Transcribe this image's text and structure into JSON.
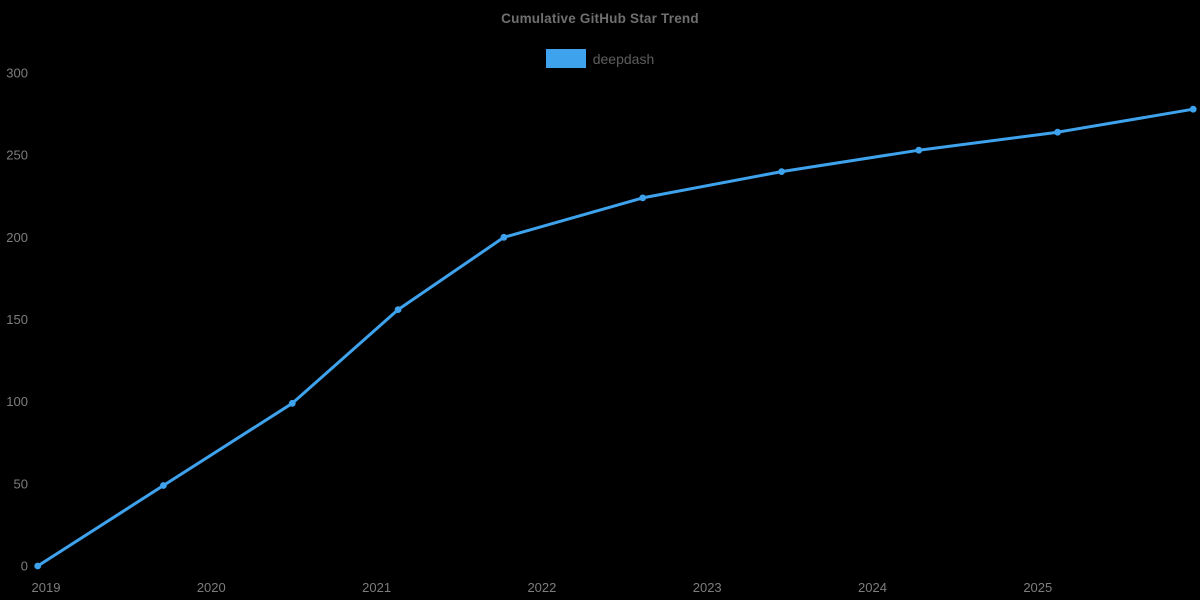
{
  "title": "Cumulative GitHub Star Trend",
  "legend": {
    "label": "deepdash",
    "position": "top"
  },
  "colors": {
    "background": "#000000",
    "line": "#3fa2ec",
    "marker": "#3fa2ec",
    "title_text": "#6f6f6f",
    "legend_text": "#5e5e5e",
    "tick_text": "#7d7d7d"
  },
  "chart_data": {
    "type": "line",
    "title": "Cumulative GitHub Star Trend",
    "xlabel": "",
    "ylabel": "",
    "grid": false,
    "legend_position": "top",
    "marker": "circle",
    "x_ticks": [
      2019,
      2020,
      2021,
      2022,
      2023,
      2024,
      2025
    ],
    "y_ticks": [
      0,
      50,
      100,
      150,
      200,
      250,
      300
    ],
    "xlim": [
      2018.95,
      2025.94
    ],
    "ylim": [
      0,
      300
    ],
    "series": [
      {
        "name": "deepdash",
        "x": [
          2018.95,
          2019.71,
          2020.49,
          2021.13,
          2021.77,
          2022.61,
          2023.45,
          2024.28,
          2025.12,
          2025.94
        ],
        "values": [
          0,
          49,
          99,
          156,
          200,
          224,
          240,
          253,
          264,
          278
        ]
      }
    ]
  }
}
